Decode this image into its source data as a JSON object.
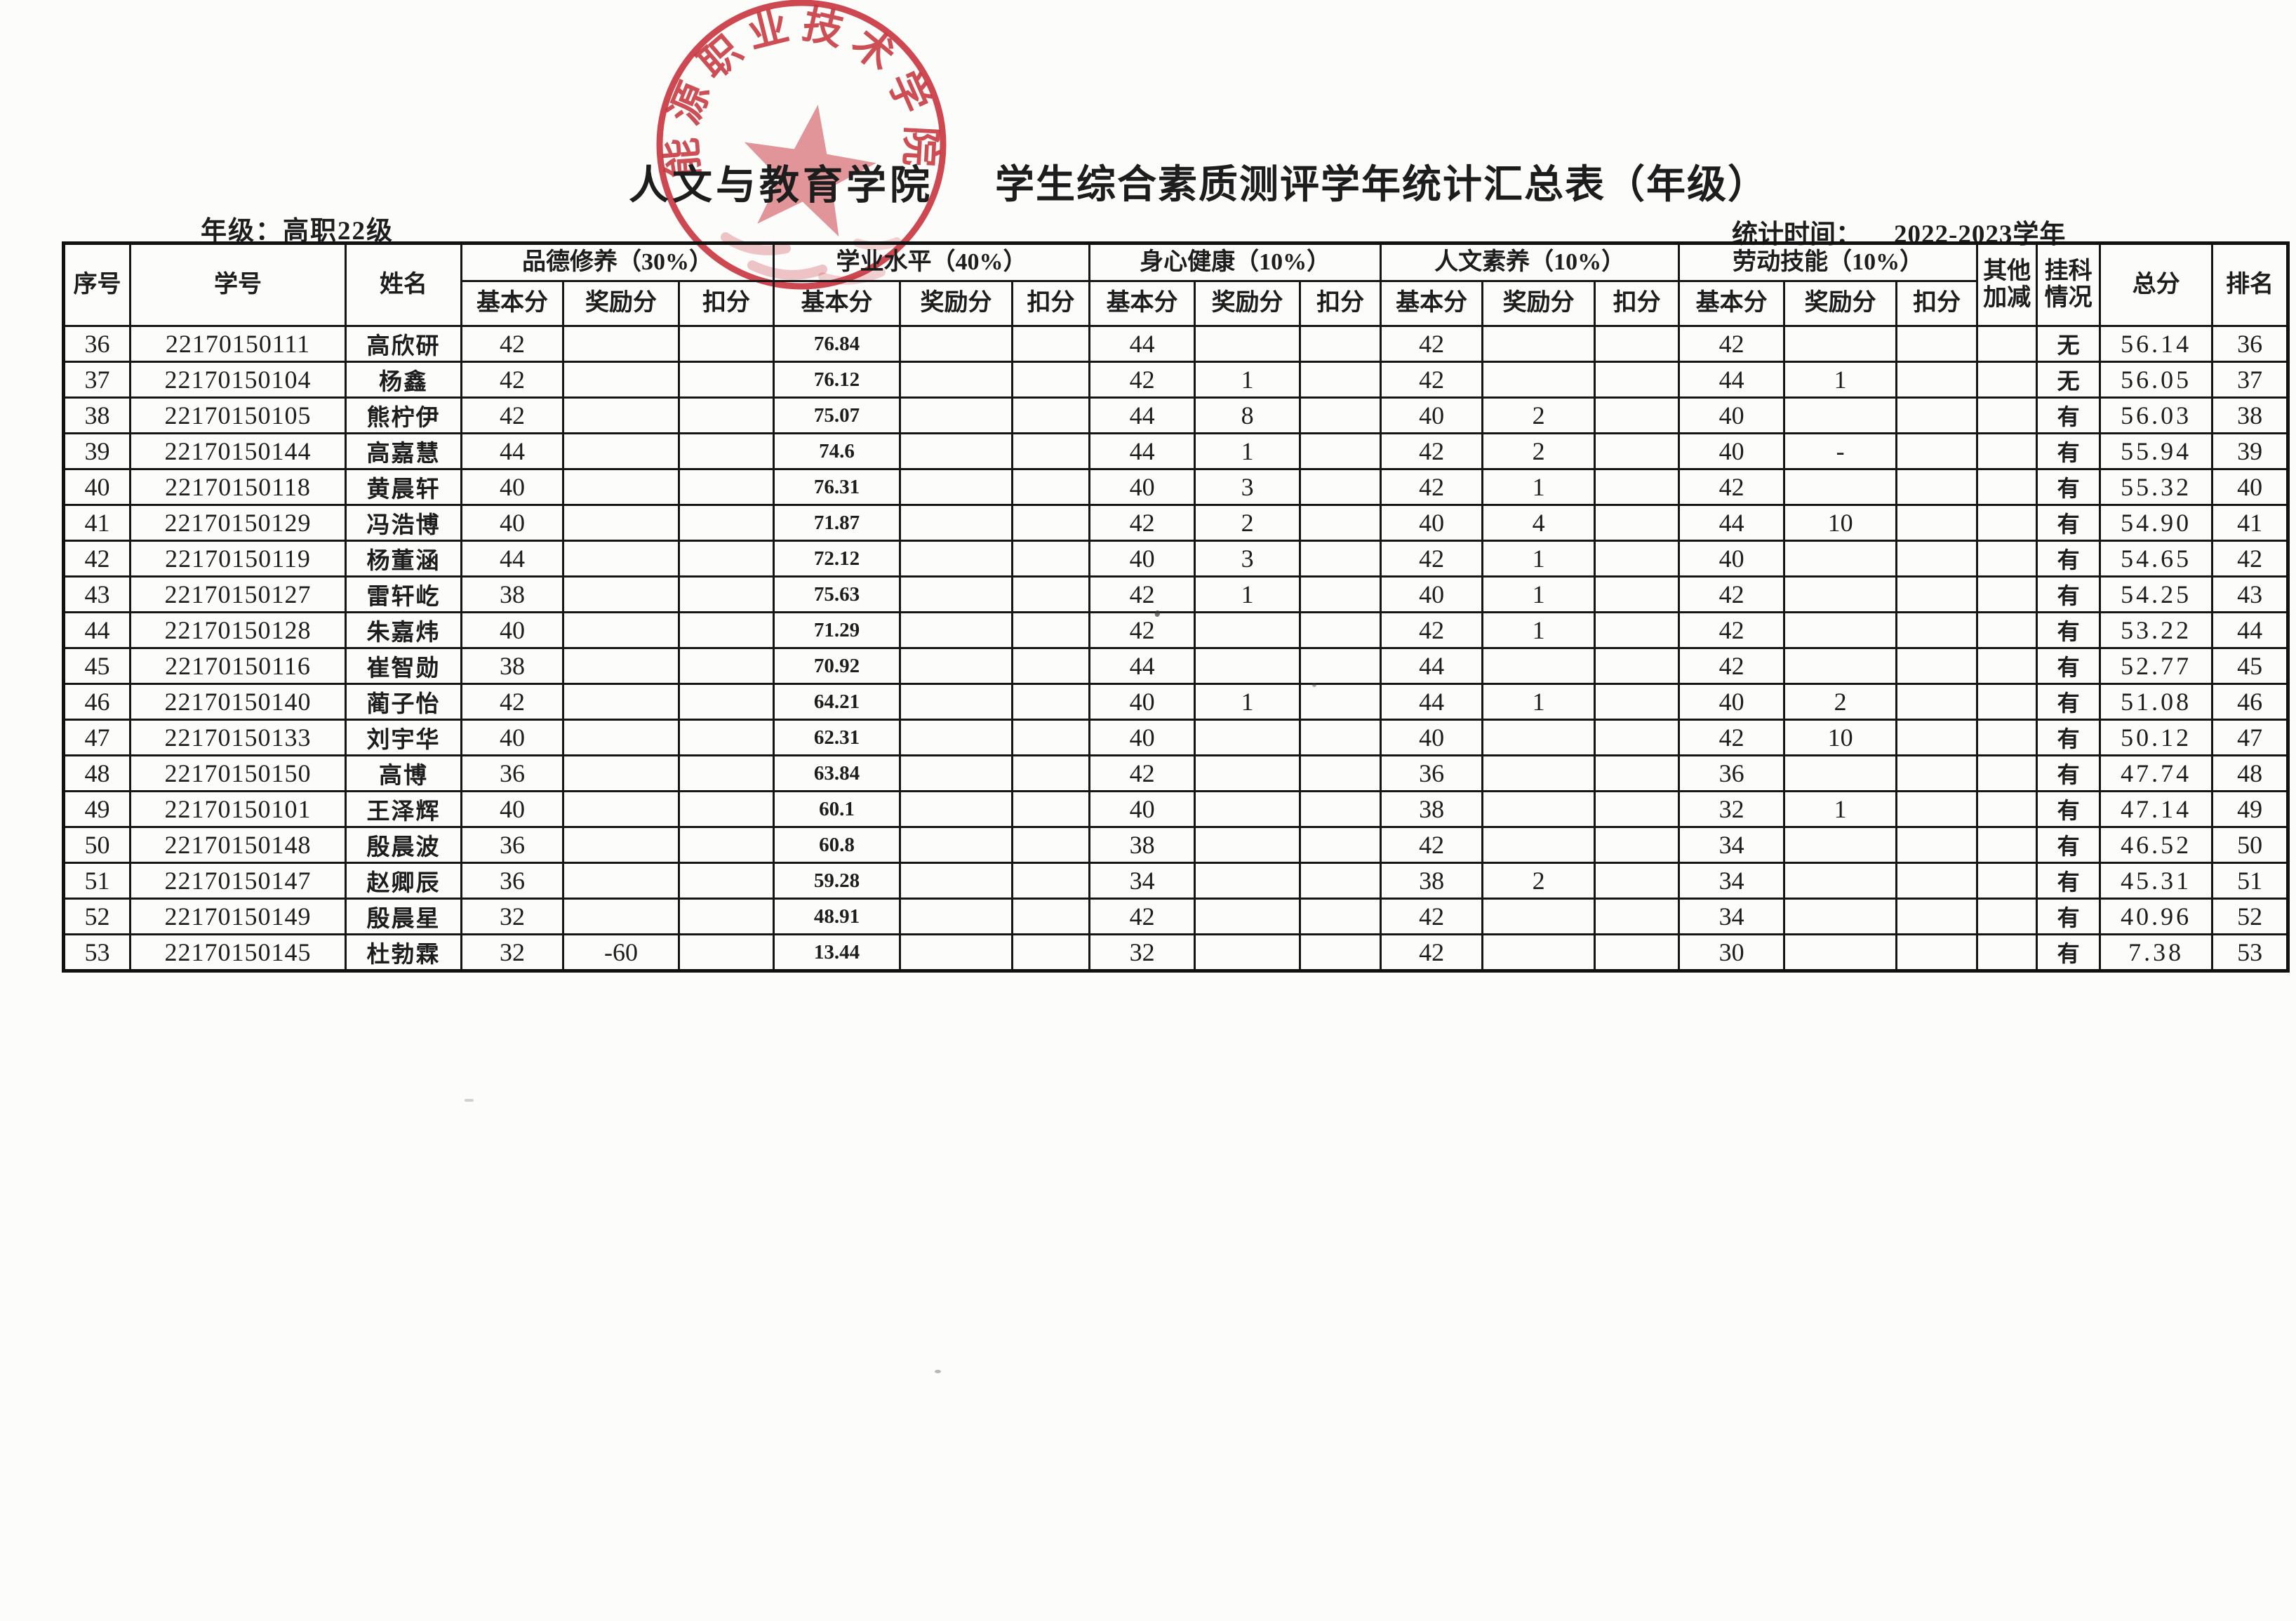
{
  "page": {
    "college": "人文与教育学院",
    "title": "学生综合素质测评学年统计汇总表（年级）",
    "grade_label": "年级：高职22级",
    "stat_label": "统计时间：",
    "stat_value": "2022-2023学年"
  },
  "stamp": {
    "arc_text": "能源职业技术学院",
    "color": "#c5202a"
  },
  "table": {
    "headers": {
      "xu_hao": "序号",
      "xue_hao": "学号",
      "xing_ming": "姓名",
      "groups": [
        {
          "label": "品德修养（30%）"
        },
        {
          "label": "学业水平（40%）"
        },
        {
          "label": "身心健康（10%）"
        },
        {
          "label": "人文素养（10%）"
        },
        {
          "label": "劳动技能（10%）"
        }
      ],
      "sub": [
        "基本分",
        "奖励分",
        "扣分"
      ],
      "qita": "其他加减",
      "guake": "挂科情况",
      "zongfen": "总分",
      "paiming": "排名"
    },
    "rows": [
      {
        "no": "36",
        "id": "22170150111",
        "name": "高欣研",
        "pd": [
          "42",
          "",
          ""
        ],
        "xy": [
          "76.84",
          "",
          ""
        ],
        "sx": [
          "44",
          "",
          ""
        ],
        "rw": [
          "42",
          "",
          ""
        ],
        "ld": [
          "42",
          "",
          ""
        ],
        "qt": "",
        "gk": "无",
        "total": "56.14",
        "rank": "36"
      },
      {
        "no": "37",
        "id": "22170150104",
        "name": "杨鑫",
        "pd": [
          "42",
          "",
          ""
        ],
        "xy": [
          "76.12",
          "",
          ""
        ],
        "sx": [
          "42",
          "1",
          ""
        ],
        "rw": [
          "42",
          "",
          ""
        ],
        "ld": [
          "44",
          "1",
          ""
        ],
        "qt": "",
        "gk": "无",
        "total": "56.05",
        "rank": "37"
      },
      {
        "no": "38",
        "id": "22170150105",
        "name": "熊柠伊",
        "pd": [
          "42",
          "",
          ""
        ],
        "xy": [
          "75.07",
          "",
          ""
        ],
        "sx": [
          "44",
          "8",
          ""
        ],
        "rw": [
          "40",
          "2",
          ""
        ],
        "ld": [
          "40",
          "",
          ""
        ],
        "qt": "",
        "gk": "有",
        "total": "56.03",
        "rank": "38"
      },
      {
        "no": "39",
        "id": "22170150144",
        "name": "高嘉慧",
        "pd": [
          "44",
          "",
          ""
        ],
        "xy": [
          "74.6",
          "",
          ""
        ],
        "sx": [
          "44",
          "1",
          ""
        ],
        "rw": [
          "42",
          "2",
          ""
        ],
        "ld": [
          "40",
          "-",
          ""
        ],
        "qt": "",
        "gk": "有",
        "total": "55.94",
        "rank": "39"
      },
      {
        "no": "40",
        "id": "22170150118",
        "name": "黄晨轩",
        "pd": [
          "40",
          "",
          ""
        ],
        "xy": [
          "76.31",
          "",
          ""
        ],
        "sx": [
          "40",
          "3",
          ""
        ],
        "rw": [
          "42",
          "1",
          ""
        ],
        "ld": [
          "42",
          "",
          ""
        ],
        "qt": "",
        "gk": "有",
        "total": "55.32",
        "rank": "40"
      },
      {
        "no": "41",
        "id": "22170150129",
        "name": "冯浩博",
        "pd": [
          "40",
          "",
          ""
        ],
        "xy": [
          "71.87",
          "",
          ""
        ],
        "sx": [
          "42",
          "2",
          ""
        ],
        "rw": [
          "40",
          "4",
          ""
        ],
        "ld": [
          "44",
          "10",
          ""
        ],
        "qt": "",
        "gk": "有",
        "total": "54.90",
        "rank": "41"
      },
      {
        "no": "42",
        "id": "22170150119",
        "name": "杨董涵",
        "pd": [
          "44",
          "",
          ""
        ],
        "xy": [
          "72.12",
          "",
          ""
        ],
        "sx": [
          "40",
          "3",
          ""
        ],
        "rw": [
          "42",
          "1",
          ""
        ],
        "ld": [
          "40",
          "",
          ""
        ],
        "qt": "",
        "gk": "有",
        "total": "54.65",
        "rank": "42"
      },
      {
        "no": "43",
        "id": "22170150127",
        "name": "雷轩屹",
        "pd": [
          "38",
          "",
          ""
        ],
        "xy": [
          "75.63",
          "",
          ""
        ],
        "sx": [
          "42",
          "1",
          ""
        ],
        "rw": [
          "40",
          "1",
          ""
        ],
        "ld": [
          "42",
          "",
          ""
        ],
        "qt": "",
        "gk": "有",
        "total": "54.25",
        "rank": "43"
      },
      {
        "no": "44",
        "id": "22170150128",
        "name": "朱嘉炜",
        "pd": [
          "40",
          "",
          ""
        ],
        "xy": [
          "71.29",
          "",
          ""
        ],
        "sx": [
          "42",
          "",
          ""
        ],
        "rw": [
          "42",
          "1",
          ""
        ],
        "ld": [
          "42",
          "",
          ""
        ],
        "qt": "",
        "gk": "有",
        "total": "53.22",
        "rank": "44"
      },
      {
        "no": "45",
        "id": "22170150116",
        "name": "崔智勋",
        "pd": [
          "38",
          "",
          ""
        ],
        "xy": [
          "70.92",
          "",
          ""
        ],
        "sx": [
          "44",
          "",
          ""
        ],
        "rw": [
          "44",
          "",
          ""
        ],
        "ld": [
          "42",
          "",
          ""
        ],
        "qt": "",
        "gk": "有",
        "total": "52.77",
        "rank": "45"
      },
      {
        "no": "46",
        "id": "22170150140",
        "name": "蔺子怡",
        "pd": [
          "42",
          "",
          ""
        ],
        "xy": [
          "64.21",
          "",
          ""
        ],
        "sx": [
          "40",
          "1",
          ""
        ],
        "rw": [
          "44",
          "1",
          ""
        ],
        "ld": [
          "40",
          "2",
          ""
        ],
        "qt": "",
        "gk": "有",
        "total": "51.08",
        "rank": "46"
      },
      {
        "no": "47",
        "id": "22170150133",
        "name": "刘宇华",
        "pd": [
          "40",
          "",
          ""
        ],
        "xy": [
          "62.31",
          "",
          ""
        ],
        "sx": [
          "40",
          "",
          ""
        ],
        "rw": [
          "40",
          "",
          ""
        ],
        "ld": [
          "42",
          "10",
          ""
        ],
        "qt": "",
        "gk": "有",
        "total": "50.12",
        "rank": "47"
      },
      {
        "no": "48",
        "id": "22170150150",
        "name": "高博",
        "pd": [
          "36",
          "",
          ""
        ],
        "xy": [
          "63.84",
          "",
          ""
        ],
        "sx": [
          "42",
          "",
          ""
        ],
        "rw": [
          "36",
          "",
          ""
        ],
        "ld": [
          "36",
          "",
          ""
        ],
        "qt": "",
        "gk": "有",
        "total": "47.74",
        "rank": "48"
      },
      {
        "no": "49",
        "id": "22170150101",
        "name": "王泽辉",
        "pd": [
          "40",
          "",
          ""
        ],
        "xy": [
          "60.1",
          "",
          ""
        ],
        "sx": [
          "40",
          "",
          ""
        ],
        "rw": [
          "38",
          "",
          ""
        ],
        "ld": [
          "32",
          "1",
          ""
        ],
        "qt": "",
        "gk": "有",
        "total": "47.14",
        "rank": "49"
      },
      {
        "no": "50",
        "id": "22170150148",
        "name": "殷晨波",
        "pd": [
          "36",
          "",
          ""
        ],
        "xy": [
          "60.8",
          "",
          ""
        ],
        "sx": [
          "38",
          "",
          ""
        ],
        "rw": [
          "42",
          "",
          ""
        ],
        "ld": [
          "34",
          "",
          ""
        ],
        "qt": "",
        "gk": "有",
        "total": "46.52",
        "rank": "50"
      },
      {
        "no": "51",
        "id": "22170150147",
        "name": "赵卿辰",
        "pd": [
          "36",
          "",
          ""
        ],
        "xy": [
          "59.28",
          "",
          ""
        ],
        "sx": [
          "34",
          "",
          ""
        ],
        "rw": [
          "38",
          "2",
          ""
        ],
        "ld": [
          "34",
          "",
          ""
        ],
        "qt": "",
        "gk": "有",
        "total": "45.31",
        "rank": "51"
      },
      {
        "no": "52",
        "id": "22170150149",
        "name": "殷晨星",
        "pd": [
          "32",
          "",
          ""
        ],
        "xy": [
          "48.91",
          "",
          ""
        ],
        "sx": [
          "42",
          "",
          ""
        ],
        "rw": [
          "42",
          "",
          ""
        ],
        "ld": [
          "34",
          "",
          ""
        ],
        "qt": "",
        "gk": "有",
        "total": "40.96",
        "rank": "52"
      },
      {
        "no": "53",
        "id": "22170150145",
        "name": "杜勃霖",
        "pd": [
          "32",
          "-60",
          ""
        ],
        "xy": [
          "13.44",
          "",
          ""
        ],
        "sx": [
          "32",
          "",
          ""
        ],
        "rw": [
          "42",
          "",
          ""
        ],
        "ld": [
          "30",
          "",
          ""
        ],
        "qt": "",
        "gk": "有",
        "total": "7.38",
        "rank": "53"
      }
    ]
  }
}
